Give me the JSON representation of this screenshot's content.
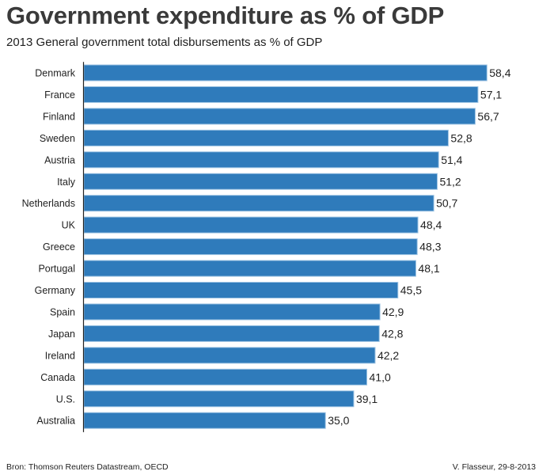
{
  "header": {
    "title": "Government expenditure as % of GDP",
    "subtitle": "2013 General government total disbursements as % of GDP"
  },
  "footer": {
    "source": "Bron: Thomson Reuters Datastream, OECD",
    "credit": "V. Flasseur, 29-8-2013"
  },
  "colors": {
    "bar": "#2f7bbb",
    "bar_edge": "#9cc3e3",
    "axis": "#222222",
    "text": "#222222"
  },
  "chart_data": {
    "type": "bar",
    "orientation": "horizontal",
    "title": "Government expenditure as % of GDP",
    "subtitle": "2013 General government total disbursements as % of GDP",
    "xlabel": "",
    "ylabel": "",
    "xlim": [
      0,
      60
    ],
    "grid": false,
    "legend": "none",
    "decimal_separator": ",",
    "categories": [
      "Denmark",
      "France",
      "Finland",
      "Sweden",
      "Austria",
      "Italy",
      "Netherlands",
      "UK",
      "Greece",
      "Portugal",
      "Germany",
      "Spain",
      "Japan",
      "Ireland",
      "Canada",
      "U.S.",
      "Australia"
    ],
    "values": [
      58.4,
      57.1,
      56.7,
      52.8,
      51.4,
      51.2,
      50.7,
      48.4,
      48.3,
      48.1,
      45.5,
      42.9,
      42.8,
      42.2,
      41.0,
      39.1,
      35.0
    ],
    "data_labels": [
      "58,4",
      "57,1",
      "56,7",
      "52,8",
      "51,4",
      "51,2",
      "50,7",
      "48,4",
      "48,3",
      "48,1",
      "45,5",
      "42,9",
      "42,8",
      "42,2",
      "41,0",
      "39,1",
      "35,0"
    ]
  }
}
